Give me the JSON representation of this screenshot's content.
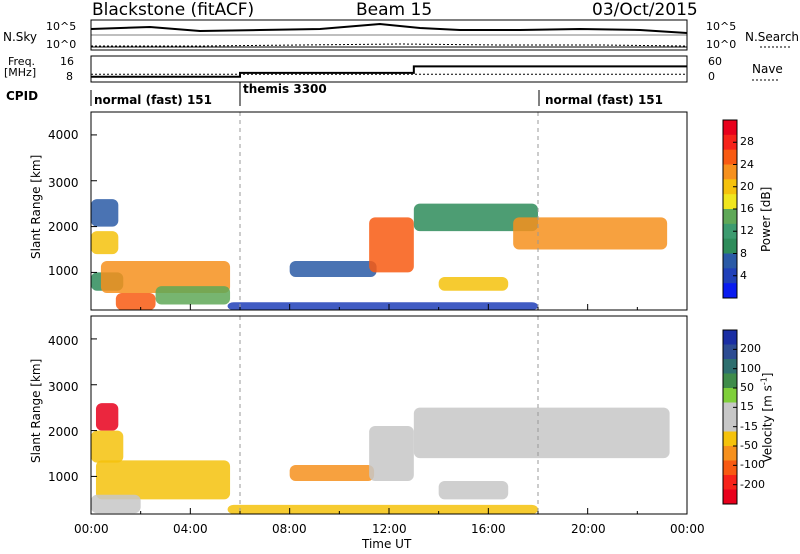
{
  "header": {
    "radar": "Blackstone (fitACF)",
    "beam": "Beam 15",
    "date": "03/Oct/2015"
  },
  "noise_panel": {
    "left_label": "N.Sky",
    "right_label": "N.Search",
    "ticks_left": [
      "10^5",
      "10^0"
    ],
    "ticks_right": [
      "10^5",
      "10^0"
    ]
  },
  "freq_panel": {
    "left_label_top": "Freq.",
    "left_label_unit": "[MHz]",
    "right_label": "Nave",
    "ticks_left": [
      "16",
      "8"
    ],
    "ticks_right": [
      "60",
      "0"
    ]
  },
  "cpid": {
    "label": "CPID",
    "segments": [
      {
        "name": "normal (fast) 151",
        "start": 0,
        "end": 6
      },
      {
        "name": "themis 3300",
        "start": 6,
        "end": 18
      },
      {
        "name": "normal (fast) 151",
        "start": 18,
        "end": 24
      }
    ]
  },
  "colorbars": {
    "power": {
      "label": "Power [dB]",
      "ticks": [
        "28",
        "24",
        "20",
        "16",
        "12",
        "8",
        "4"
      ],
      "colors": [
        "#e8001c",
        "#f7231a",
        "#f85a12",
        "#f6901d",
        "#f5c20c",
        "#f0e61e",
        "#5fa857",
        "#3c9b6f",
        "#2e8c5a",
        "#2a5aa6",
        "#2040b8",
        "#0a1cf0"
      ]
    },
    "velocity": {
      "label_main": "Velocity [m s",
      "label_sup": "-1",
      "label_end": "]",
      "ticks": [
        "200",
        "100",
        "50",
        "15",
        "-15",
        "-50",
        "-100",
        "-200"
      ],
      "colors": [
        "#1a2ea3",
        "#2d4c92",
        "#2e6f6f",
        "#3f8c4a",
        "#7fcf3a",
        "#c7c7c7",
        "#c7c7c7",
        "#f5c20c",
        "#f6901d",
        "#f85a12",
        "#f7231a",
        "#e8001c"
      ]
    }
  },
  "chart_data": [
    {
      "type": "heatmap",
      "name": "power",
      "ylabel": "Slant Range [km]",
      "y_ticks": [
        "4000",
        "3000",
        "2000",
        "1000"
      ],
      "x_ticks": [
        "00:00",
        "04:00",
        "08:00",
        "12:00",
        "16:00",
        "20:00",
        "00:00"
      ],
      "xlim": [
        0,
        24
      ],
      "ylim": [
        180,
        4500
      ],
      "bands": [
        {
          "t0": 0.0,
          "t1": 1.1,
          "r0": 2000,
          "r1": 2600,
          "color": "#2a5aa6"
        },
        {
          "t0": 0.0,
          "t1": 1.1,
          "r0": 1400,
          "r1": 1900,
          "color": "#f5c20c"
        },
        {
          "t0": 0.0,
          "t1": 1.3,
          "r0": 600,
          "r1": 1000,
          "color": "#2e8c5a"
        },
        {
          "t0": 0.4,
          "t1": 5.6,
          "r0": 550,
          "r1": 1250,
          "color": "#f6901d"
        },
        {
          "t0": 1.0,
          "t1": 2.6,
          "r0": 180,
          "r1": 550,
          "color": "#f85a12"
        },
        {
          "t0": 2.6,
          "t1": 5.6,
          "r0": 300,
          "r1": 700,
          "color": "#5fa857"
        },
        {
          "t0": 8.0,
          "t1": 11.5,
          "r0": 900,
          "r1": 1250,
          "color": "#2a5aa6"
        },
        {
          "t0": 11.2,
          "t1": 13.0,
          "r0": 1000,
          "r1": 2200,
          "color": "#f85a12"
        },
        {
          "t0": 13.0,
          "t1": 18.0,
          "r0": 1900,
          "r1": 2500,
          "color": "#2e8c5a"
        },
        {
          "t0": 14.0,
          "t1": 16.8,
          "r0": 600,
          "r1": 900,
          "color": "#f5c20c"
        },
        {
          "t0": 17.0,
          "t1": 23.2,
          "r0": 1500,
          "r1": 2200,
          "color": "#f6901d"
        },
        {
          "t0": 5.5,
          "t1": 18.0,
          "r0": 180,
          "r1": 350,
          "color": "#2040b8"
        }
      ]
    },
    {
      "type": "heatmap",
      "name": "velocity",
      "ylabel": "Slant Range [km]",
      "y_ticks": [
        "4000",
        "3000",
        "2000",
        "1000"
      ],
      "x_ticks": [
        "00:00",
        "04:00",
        "08:00",
        "12:00",
        "16:00",
        "20:00",
        "00:00"
      ],
      "xlabel": "Time UT",
      "xlim": [
        0,
        24
      ],
      "ylim": [
        180,
        4500
      ],
      "bands": [
        {
          "t0": 0.2,
          "t1": 1.1,
          "r0": 2000,
          "r1": 2600,
          "color": "#e8001c"
        },
        {
          "t0": 0.0,
          "t1": 1.3,
          "r0": 1300,
          "r1": 2000,
          "color": "#f5c20c"
        },
        {
          "t0": 0.2,
          "t1": 5.6,
          "r0": 500,
          "r1": 1350,
          "color": "#f5c20c"
        },
        {
          "t0": 0.0,
          "t1": 2.0,
          "r0": 200,
          "r1": 600,
          "color": "#c7c7c7"
        },
        {
          "t0": 8.0,
          "t1": 11.4,
          "r0": 900,
          "r1": 1250,
          "color": "#f6901d"
        },
        {
          "t0": 11.2,
          "t1": 13.0,
          "r0": 900,
          "r1": 2100,
          "color": "#c7c7c7"
        },
        {
          "t0": 13.0,
          "t1": 23.3,
          "r0": 1400,
          "r1": 2500,
          "color": "#c7c7c7"
        },
        {
          "t0": 14.0,
          "t1": 16.8,
          "r0": 500,
          "r1": 900,
          "color": "#c7c7c7"
        },
        {
          "t0": 5.5,
          "t1": 18.0,
          "r0": 180,
          "r1": 380,
          "color": "#f5c20c"
        }
      ]
    }
  ],
  "freq_series": {
    "x": [
      0,
      6,
      6,
      13,
      13,
      24
    ],
    "y": [
      9,
      9,
      10.5,
      10.5,
      13,
      13
    ]
  },
  "nave_series": {
    "x": [
      0,
      18,
      24
    ],
    "y": [
      18,
      18,
      18
    ]
  }
}
